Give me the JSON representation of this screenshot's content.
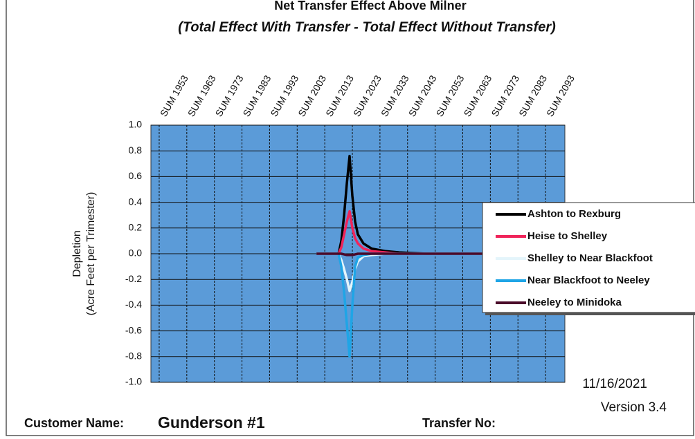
{
  "chart_data": {
    "type": "line",
    "title": "Net Transfer Effect Above Milner",
    "subtitle": "(Total Effect With Transfer - Total Effect Without Transfer)",
    "ylabel": [
      "Depletion",
      "(Acre Feet per Trimester)"
    ],
    "x": [
      2010,
      2018,
      2019,
      2020,
      2021,
      2022,
      2023,
      2024,
      2025,
      2027,
      2030,
      2035,
      2040,
      2050,
      2100
    ],
    "xlim": [
      1950,
      2100
    ],
    "xticks": [
      {
        "value": 1953,
        "label": "SUM 1953"
      },
      {
        "value": 1963,
        "label": "SUM 1963"
      },
      {
        "value": 1973,
        "label": "SUM 1973"
      },
      {
        "value": 1983,
        "label": "SUM 1983"
      },
      {
        "value": 1993,
        "label": "SUM 1993"
      },
      {
        "value": 2003,
        "label": "SUM 2003"
      },
      {
        "value": 2013,
        "label": "SUM 2013"
      },
      {
        "value": 2023,
        "label": "SUM 2023"
      },
      {
        "value": 2033,
        "label": "SUM 2033"
      },
      {
        "value": 2043,
        "label": "SUM 2043"
      },
      {
        "value": 2053,
        "label": "SUM 2053"
      },
      {
        "value": 2063,
        "label": "SUM 2063"
      },
      {
        "value": 2073,
        "label": "SUM 2073"
      },
      {
        "value": 2083,
        "label": "SUM 2083"
      },
      {
        "value": 2093,
        "label": "SUM 2093"
      }
    ],
    "ylim": [
      -1,
      1
    ],
    "yticks": [
      {
        "value": 1,
        "label": "1.0"
      },
      0.8,
      0.6,
      0.4,
      0.2,
      {
        "value": 0,
        "label": "0.0"
      },
      -0.2,
      -0.4,
      -0.6,
      -0.8,
      {
        "value": -1,
        "label": "-1.0"
      }
    ],
    "grid": true,
    "background": "#5b9bd8",
    "legend": "right",
    "series": [
      {
        "name": "Ashton to Rexburg",
        "color": "#000000",
        "values": [
          0,
          0,
          0.1,
          0.3,
          0.55,
          0.76,
          0.45,
          0.25,
          0.15,
          0.08,
          0.04,
          0.02,
          0.01,
          0,
          0
        ]
      },
      {
        "name": "Heise to Shelley",
        "color": "#f0245a",
        "values": [
          0,
          0,
          0.05,
          0.15,
          0.25,
          0.33,
          0.2,
          0.12,
          0.08,
          0.04,
          0.02,
          0.01,
          0,
          0,
          0
        ]
      },
      {
        "name": "Shelley to Near Blackfoot",
        "color": "#e4f5fb",
        "values": [
          0,
          0,
          -0.05,
          -0.12,
          -0.2,
          -0.29,
          -0.22,
          -0.12,
          -0.06,
          -0.02,
          -0.01,
          0,
          0,
          0,
          0
        ]
      },
      {
        "name": "Near Blackfoot to Neeley",
        "color": "#1fa5e6",
        "values": [
          0,
          0,
          -0.1,
          -0.3,
          -0.55,
          -0.8,
          -0.4,
          -0.1,
          -0.03,
          -0.01,
          0,
          0,
          0,
          0,
          0
        ]
      },
      {
        "name": "Neeley to Minidoka",
        "color": "#4a0a2a",
        "values": [
          0,
          0,
          0,
          -0.005,
          -0.01,
          -0.01,
          -0.01,
          -0.005,
          0,
          0,
          0,
          0,
          0,
          0,
          0
        ]
      }
    ]
  },
  "footer": {
    "date": "11/16/2021",
    "version": "Version 3.4",
    "customer_label": "Customer Name:",
    "customer_name": "Gunderson #1",
    "transfer_label": "Transfer No:"
  }
}
